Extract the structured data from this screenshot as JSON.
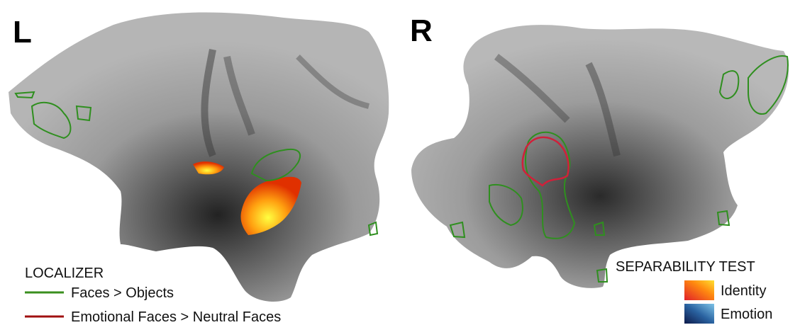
{
  "panels": {
    "left": {
      "label": "L"
    },
    "right": {
      "label": "R"
    }
  },
  "legend_localizer": {
    "title": "LOCALIZER",
    "items": [
      "Faces > Objects",
      "Emotional Faces > Neutral Faces"
    ]
  },
  "legend_separability": {
    "title": "SEPARABILITY TEST",
    "items": [
      "Identity",
      "Emotion"
    ]
  }
}
